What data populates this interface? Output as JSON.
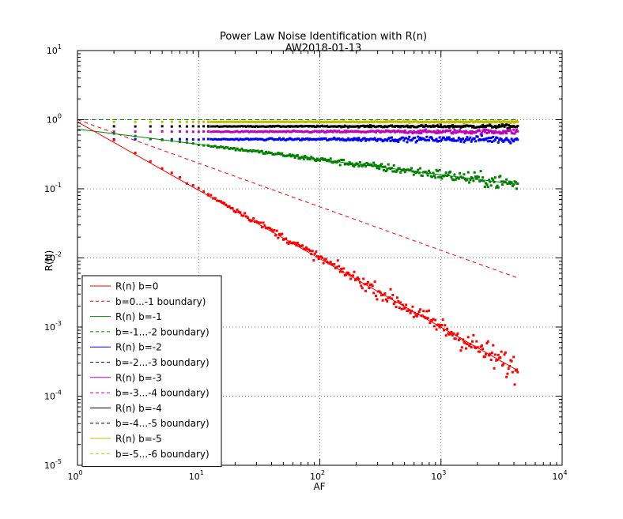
{
  "chart_data": {
    "type": "scatter",
    "title": "Power Law Noise Identification with R(n)",
    "subtitle": "AW2018-01-13",
    "xlabel": "AF",
    "ylabel": "R(N)",
    "xscale": "log",
    "yscale": "log",
    "xlim": [
      1,
      10000
    ],
    "ylim": [
      1e-05,
      10
    ],
    "grid": true,
    "legend_position": "bottom-left",
    "x_ticks": [
      {
        "base": "10",
        "exp": "0",
        "value": 1
      },
      {
        "base": "10",
        "exp": "1",
        "value": 10
      },
      {
        "base": "10",
        "exp": "2",
        "value": 100
      },
      {
        "base": "10",
        "exp": "3",
        "value": 1000
      },
      {
        "base": "10",
        "exp": "4",
        "value": 10000
      }
    ],
    "y_ticks": [
      {
        "base": "10",
        "exp": "-5",
        "value": 1e-05
      },
      {
        "base": "10",
        "exp": "-4",
        "value": 0.0001
      },
      {
        "base": "10",
        "exp": "-3",
        "value": 0.001
      },
      {
        "base": "10",
        "exp": "-2",
        "value": 0.01
      },
      {
        "base": "10",
        "exp": "-1",
        "value": 0.1
      },
      {
        "base": "10",
        "exp": "0",
        "value": 1
      },
      {
        "base": "10",
        "exp": "1",
        "value": 10
      }
    ],
    "x_range": [
      1,
      4300
    ],
    "series": [
      {
        "name": "R(n) b=0",
        "color": "#ff0000",
        "fit": {
          "at_x1": 0.93,
          "slope": -0.99
        },
        "scatter_center": {
          "at_x1": 1.0,
          "slope": -1.0
        },
        "spread": 0.55
      },
      {
        "name": "b=0...-1 boundary)",
        "color": "#ff0000",
        "dashed": true,
        "line": {
          "at_x1": 1.0,
          "slope": -0.63
        }
      },
      {
        "name": "R(n) b=-1",
        "color": "#008000",
        "fit": {
          "at_x1": 0.73,
          "slope": -0.22
        },
        "scatter_center": {
          "at_x1": 0.73,
          "slope": -0.22
        },
        "spread": 0.3
      },
      {
        "name": "b=-1...-2 boundary)",
        "color": "#008000",
        "dashed": true,
        "line": {
          "at_x1": 1.0,
          "slope": 0
        }
      },
      {
        "name": "R(n) b=-2",
        "color": "#0000ff",
        "scatter_center": {
          "at_x1": 0.52,
          "slope": 0
        },
        "spread": 0.15
      },
      {
        "name": "b=-2...-3 boundary)",
        "color": "#0000ff",
        "dashed": true,
        "line": {
          "at_x1": 1.0,
          "slope": 0
        }
      },
      {
        "name": "R(n) b=-3",
        "color": "#bf00bf",
        "scatter_center": {
          "at_x1": 0.67,
          "slope": 0
        },
        "spread": 0.1
      },
      {
        "name": "b=-3...-4 boundary)",
        "color": "#bf00bf",
        "dashed": true,
        "line": {
          "at_x1": 1.0,
          "slope": 0
        }
      },
      {
        "name": "R(n) b=-4",
        "color": "#000000",
        "scatter_center": {
          "at_x1": 0.8,
          "slope": 0
        },
        "spread": 0.07
      },
      {
        "name": "b=-4...-5 boundary)",
        "color": "#000000",
        "dashed": true,
        "line": {
          "at_x1": 1.0,
          "slope": 0
        }
      },
      {
        "name": "R(n) b=-5",
        "color": "#bfbf00",
        "scatter_center": {
          "at_x1": 0.93,
          "slope": 0
        },
        "spread": 0.04
      },
      {
        "name": "b=-5...-6 boundary)",
        "color": "#bfbf00",
        "dashed": true,
        "line": {
          "at_x1": 1.0,
          "slope": 0
        }
      }
    ]
  }
}
